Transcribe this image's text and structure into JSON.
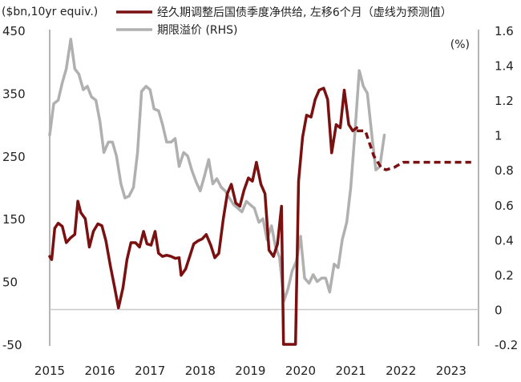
{
  "chart_data": {
    "type": "line",
    "left_axis_unit": "($bn,10yr equiv.)",
    "right_axis_unit": "(%)",
    "left_axis": {
      "range": [
        -50,
        450
      ],
      "ticks": [
        "450",
        "350",
        "250",
        "150",
        "50",
        "-50"
      ]
    },
    "right_axis": {
      "range": [
        -0.2,
        1.6
      ],
      "ticks": [
        "1.6",
        "1.4",
        "1.2",
        "1",
        "0.8",
        "0.6",
        "0.4",
        "0.2",
        "0",
        "-0.2"
      ]
    },
    "x_axis": {
      "range": [
        2015,
        2023.4
      ],
      "ticks": [
        "2015",
        "2016",
        "2017",
        "2018",
        "2019",
        "2020",
        "2021",
        "2022",
        "2023"
      ]
    },
    "zero_line": 0,
    "legend_placement": "top",
    "series": [
      {
        "name": "经久期调整后国债季度净供给, 左移6个月（虚线为预测值）",
        "axis": "left",
        "color": "#7a1010",
        "style": "solid",
        "points": [
          [
            2015.0,
            90
          ],
          [
            2015.04,
            85
          ],
          [
            2015.1,
            135
          ],
          [
            2015.17,
            143
          ],
          [
            2015.25,
            138
          ],
          [
            2015.33,
            112
          ],
          [
            2015.42,
            120
          ],
          [
            2015.5,
            125
          ],
          [
            2015.56,
            178
          ],
          [
            2015.62,
            160
          ],
          [
            2015.71,
            150
          ],
          [
            2015.79,
            105
          ],
          [
            2015.87,
            130
          ],
          [
            2015.96,
            142
          ],
          [
            2016.04,
            139
          ],
          [
            2016.12,
            115
          ],
          [
            2016.21,
            75
          ],
          [
            2016.29,
            42
          ],
          [
            2016.37,
            8
          ],
          [
            2016.46,
            40
          ],
          [
            2016.54,
            85
          ],
          [
            2016.62,
            112
          ],
          [
            2016.71,
            112
          ],
          [
            2016.79,
            105
          ],
          [
            2016.87,
            130
          ],
          [
            2016.94,
            110
          ],
          [
            2017.02,
            108
          ],
          [
            2017.1,
            130
          ],
          [
            2017.17,
            95
          ],
          [
            2017.25,
            90
          ],
          [
            2017.33,
            92
          ],
          [
            2017.42,
            90
          ],
          [
            2017.5,
            87
          ],
          [
            2017.58,
            88
          ],
          [
            2017.62,
            60
          ],
          [
            2017.71,
            70
          ],
          [
            2017.79,
            90
          ],
          [
            2017.87,
            110
          ],
          [
            2017.96,
            115
          ],
          [
            2018.04,
            118
          ],
          [
            2018.12,
            125
          ],
          [
            2018.21,
            108
          ],
          [
            2018.29,
            88
          ],
          [
            2018.37,
            95
          ],
          [
            2018.46,
            150
          ],
          [
            2018.54,
            190
          ],
          [
            2018.62,
            205
          ],
          [
            2018.71,
            175
          ],
          [
            2018.79,
            170
          ],
          [
            2018.87,
            195
          ],
          [
            2018.96,
            215
          ],
          [
            2019.04,
            210
          ],
          [
            2019.12,
            240
          ],
          [
            2019.21,
            205
          ],
          [
            2019.29,
            190
          ],
          [
            2019.37,
            100
          ],
          [
            2019.46,
            90
          ],
          [
            2019.54,
            110
          ],
          [
            2019.62,
            170
          ],
          [
            2019.66,
            -50
          ],
          [
            2019.9,
            -50
          ],
          [
            2019.96,
            210
          ],
          [
            2020.04,
            280
          ],
          [
            2020.12,
            315
          ],
          [
            2020.21,
            312
          ],
          [
            2020.29,
            340
          ],
          [
            2020.37,
            355
          ],
          [
            2020.46,
            358
          ],
          [
            2020.54,
            340
          ],
          [
            2020.62,
            255
          ],
          [
            2020.71,
            300
          ],
          [
            2020.79,
            295
          ],
          [
            2020.87,
            355
          ],
          [
            2020.96,
            300
          ],
          [
            2021.04,
            290
          ],
          [
            2021.12,
            295
          ]
        ]
      },
      {
        "name": "经久期调整后国债季度净供给, 左移6个月（虚线为预测值）",
        "axis": "left",
        "color": "#7a1010",
        "style": "dashed",
        "points": [
          [
            2021.12,
            290
          ],
          [
            2021.29,
            290
          ],
          [
            2021.46,
            250
          ],
          [
            2021.62,
            230
          ],
          [
            2021.71,
            228
          ],
          [
            2021.87,
            232
          ],
          [
            2022.04,
            240
          ],
          [
            2022.5,
            240
          ],
          [
            2023.0,
            240
          ],
          [
            2023.4,
            240
          ]
        ]
      },
      {
        "name": "期限溢价 (RHS)",
        "axis": "right",
        "color": "#b0b0b0",
        "style": "solid",
        "points": [
          [
            2015.0,
            1.0
          ],
          [
            2015.08,
            1.18
          ],
          [
            2015.17,
            1.2
          ],
          [
            2015.25,
            1.3
          ],
          [
            2015.33,
            1.38
          ],
          [
            2015.42,
            1.55
          ],
          [
            2015.5,
            1.38
          ],
          [
            2015.58,
            1.35
          ],
          [
            2015.67,
            1.26
          ],
          [
            2015.75,
            1.28
          ],
          [
            2015.83,
            1.22
          ],
          [
            2015.92,
            1.2
          ],
          [
            2016.0,
            1.08
          ],
          [
            2016.08,
            0.9
          ],
          [
            2016.17,
            0.96
          ],
          [
            2016.25,
            0.96
          ],
          [
            2016.33,
            0.88
          ],
          [
            2016.42,
            0.72
          ],
          [
            2016.5,
            0.64
          ],
          [
            2016.58,
            0.65
          ],
          [
            2016.67,
            0.7
          ],
          [
            2016.75,
            0.9
          ],
          [
            2016.83,
            1.25
          ],
          [
            2016.92,
            1.28
          ],
          [
            2017.0,
            1.26
          ],
          [
            2017.08,
            1.15
          ],
          [
            2017.17,
            1.14
          ],
          [
            2017.25,
            1.06
          ],
          [
            2017.33,
            0.96
          ],
          [
            2017.42,
            0.96
          ],
          [
            2017.5,
            0.98
          ],
          [
            2017.58,
            0.82
          ],
          [
            2017.67,
            0.9
          ],
          [
            2017.75,
            0.88
          ],
          [
            2017.83,
            0.8
          ],
          [
            2017.92,
            0.73
          ],
          [
            2018.0,
            0.68
          ],
          [
            2018.08,
            0.76
          ],
          [
            2018.17,
            0.86
          ],
          [
            2018.25,
            0.72
          ],
          [
            2018.33,
            0.75
          ],
          [
            2018.42,
            0.7
          ],
          [
            2018.5,
            0.68
          ],
          [
            2018.58,
            0.64
          ],
          [
            2018.67,
            0.6
          ],
          [
            2018.75,
            0.58
          ],
          [
            2018.83,
            0.56
          ],
          [
            2018.92,
            0.62
          ],
          [
            2019.0,
            0.6
          ],
          [
            2019.08,
            0.58
          ],
          [
            2019.17,
            0.5
          ],
          [
            2019.25,
            0.52
          ],
          [
            2019.33,
            0.4
          ],
          [
            2019.42,
            0.48
          ],
          [
            2019.5,
            0.36
          ],
          [
            2019.58,
            0.3
          ],
          [
            2019.67,
            0.05
          ],
          [
            2019.75,
            0.12
          ],
          [
            2019.83,
            0.22
          ],
          [
            2019.92,
            0.28
          ],
          [
            2020.0,
            0.42
          ],
          [
            2020.08,
            0.18
          ],
          [
            2020.17,
            0.15
          ],
          [
            2020.25,
            0.2
          ],
          [
            2020.33,
            0.16
          ],
          [
            2020.42,
            0.18
          ],
          [
            2020.5,
            0.18
          ],
          [
            2020.58,
            0.1
          ],
          [
            2020.67,
            0.26
          ],
          [
            2020.75,
            0.24
          ],
          [
            2020.83,
            0.4
          ],
          [
            2020.92,
            0.5
          ],
          [
            2021.0,
            0.7
          ],
          [
            2021.08,
            1.0
          ],
          [
            2021.17,
            1.37
          ],
          [
            2021.25,
            1.28
          ],
          [
            2021.33,
            1.24
          ],
          [
            2021.42,
            1.0
          ],
          [
            2021.5,
            0.8
          ],
          [
            2021.58,
            0.82
          ],
          [
            2021.67,
            1.0
          ]
        ]
      }
    ]
  }
}
